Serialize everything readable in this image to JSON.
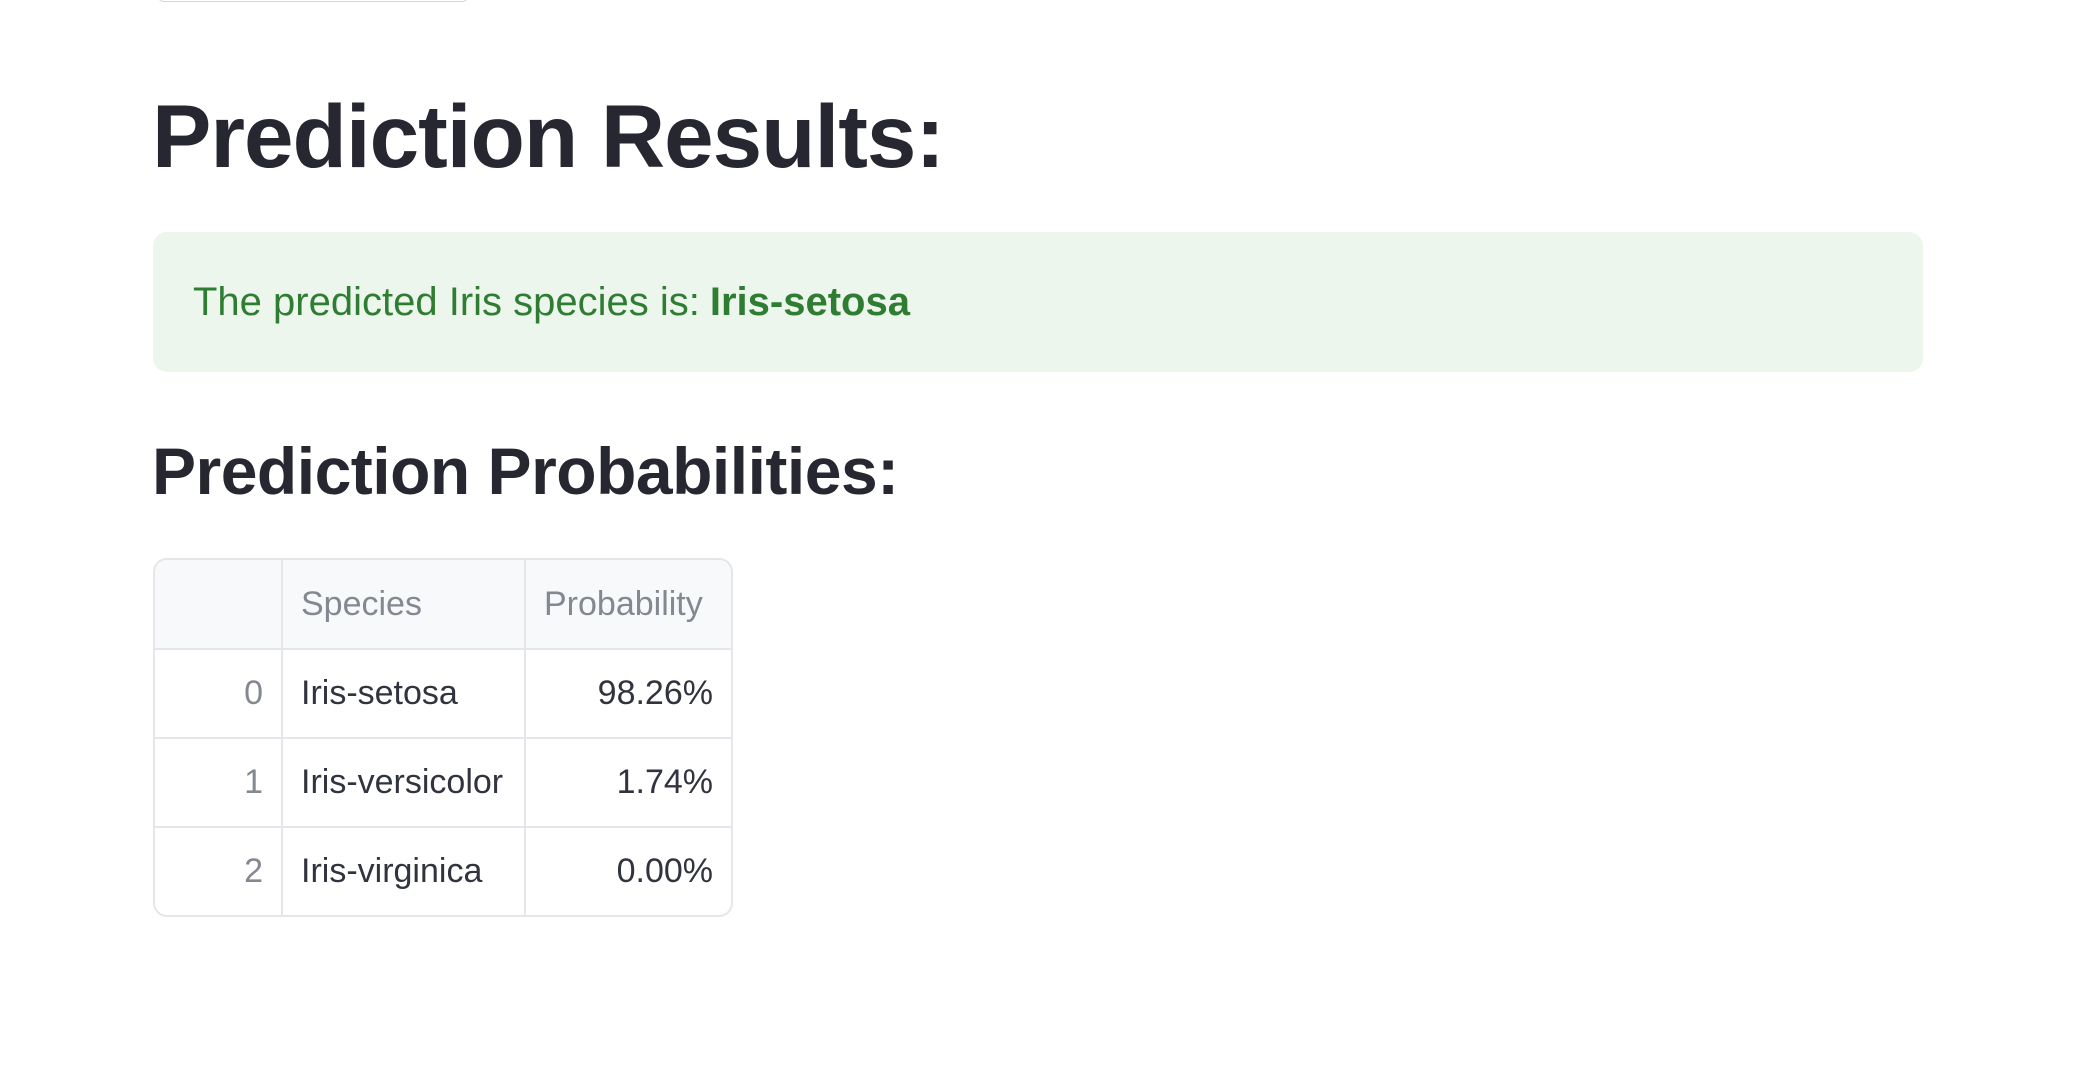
{
  "results": {
    "title": "Prediction Results:",
    "success_prefix": "The predicted Iris species is:",
    "predicted_species": "Iris-setosa"
  },
  "probabilities": {
    "title": "Prediction Probabilities:",
    "columns": [
      "",
      "Species",
      "Probability"
    ],
    "rows": [
      {
        "index": "0",
        "species": "Iris-setosa",
        "probability": "98.26%"
      },
      {
        "index": "1",
        "species": "Iris-versicolor",
        "probability": "1.74%"
      },
      {
        "index": "2",
        "species": "Iris-virginica",
        "probability": "0.00%"
      }
    ]
  },
  "colors": {
    "success_bg": "#ecf6ec",
    "success_text": "#2f7d32",
    "heading": "#262730",
    "muted": "#848891"
  }
}
